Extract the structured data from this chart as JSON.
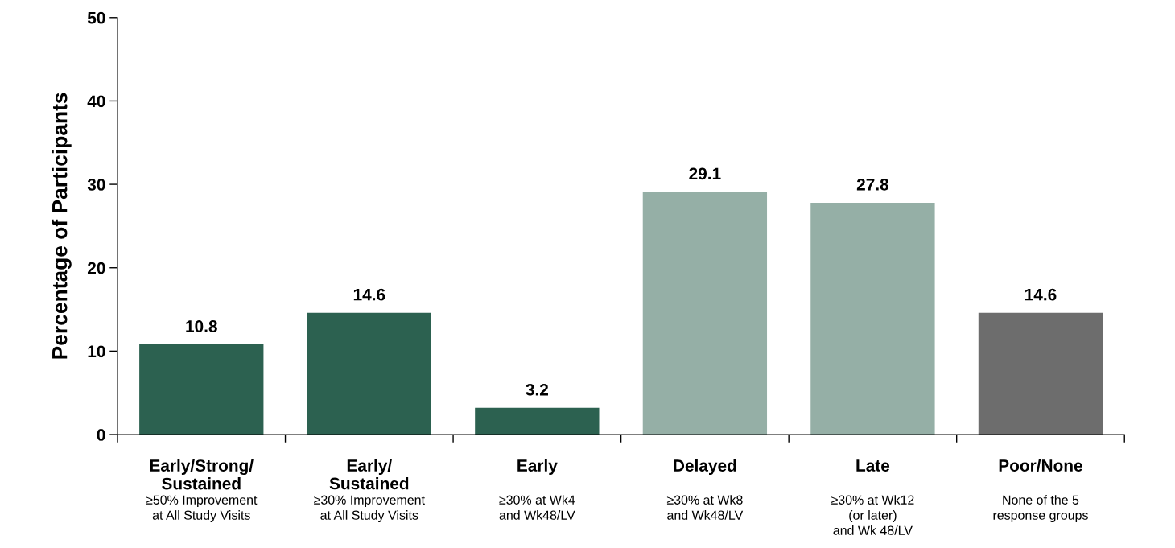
{
  "chart_data": {
    "type": "bar",
    "categories": [
      "Early/Strong/\nSustained",
      "Early/\nSustained",
      "Early",
      "Delayed",
      "Late",
      "Poor/None"
    ],
    "values": [
      10.8,
      14.6,
      3.2,
      29.1,
      27.8,
      14.6
    ],
    "colors": [
      "#2c6150",
      "#2c6150",
      "#2c6150",
      "#95afa6",
      "#95afa6",
      "#6d6d6d"
    ],
    "ylabel": "Percentage of Participants",
    "ylim": [
      0,
      50
    ],
    "yticks": [
      0,
      10,
      20,
      30,
      40,
      50
    ],
    "data_labels": true,
    "grid": false,
    "legend": false,
    "annotations": [
      "≥50% Improvement\nat All Study Visits",
      "≥30% Improvement\nat All Study Visits",
      "≥30% at Wk4\nand Wk48/LV",
      "≥30% at Wk8\nand Wk48/LV",
      "≥30% at Wk12\n(or later)\nand Wk 48/LV",
      "None of the 5\nresponse groups"
    ]
  }
}
